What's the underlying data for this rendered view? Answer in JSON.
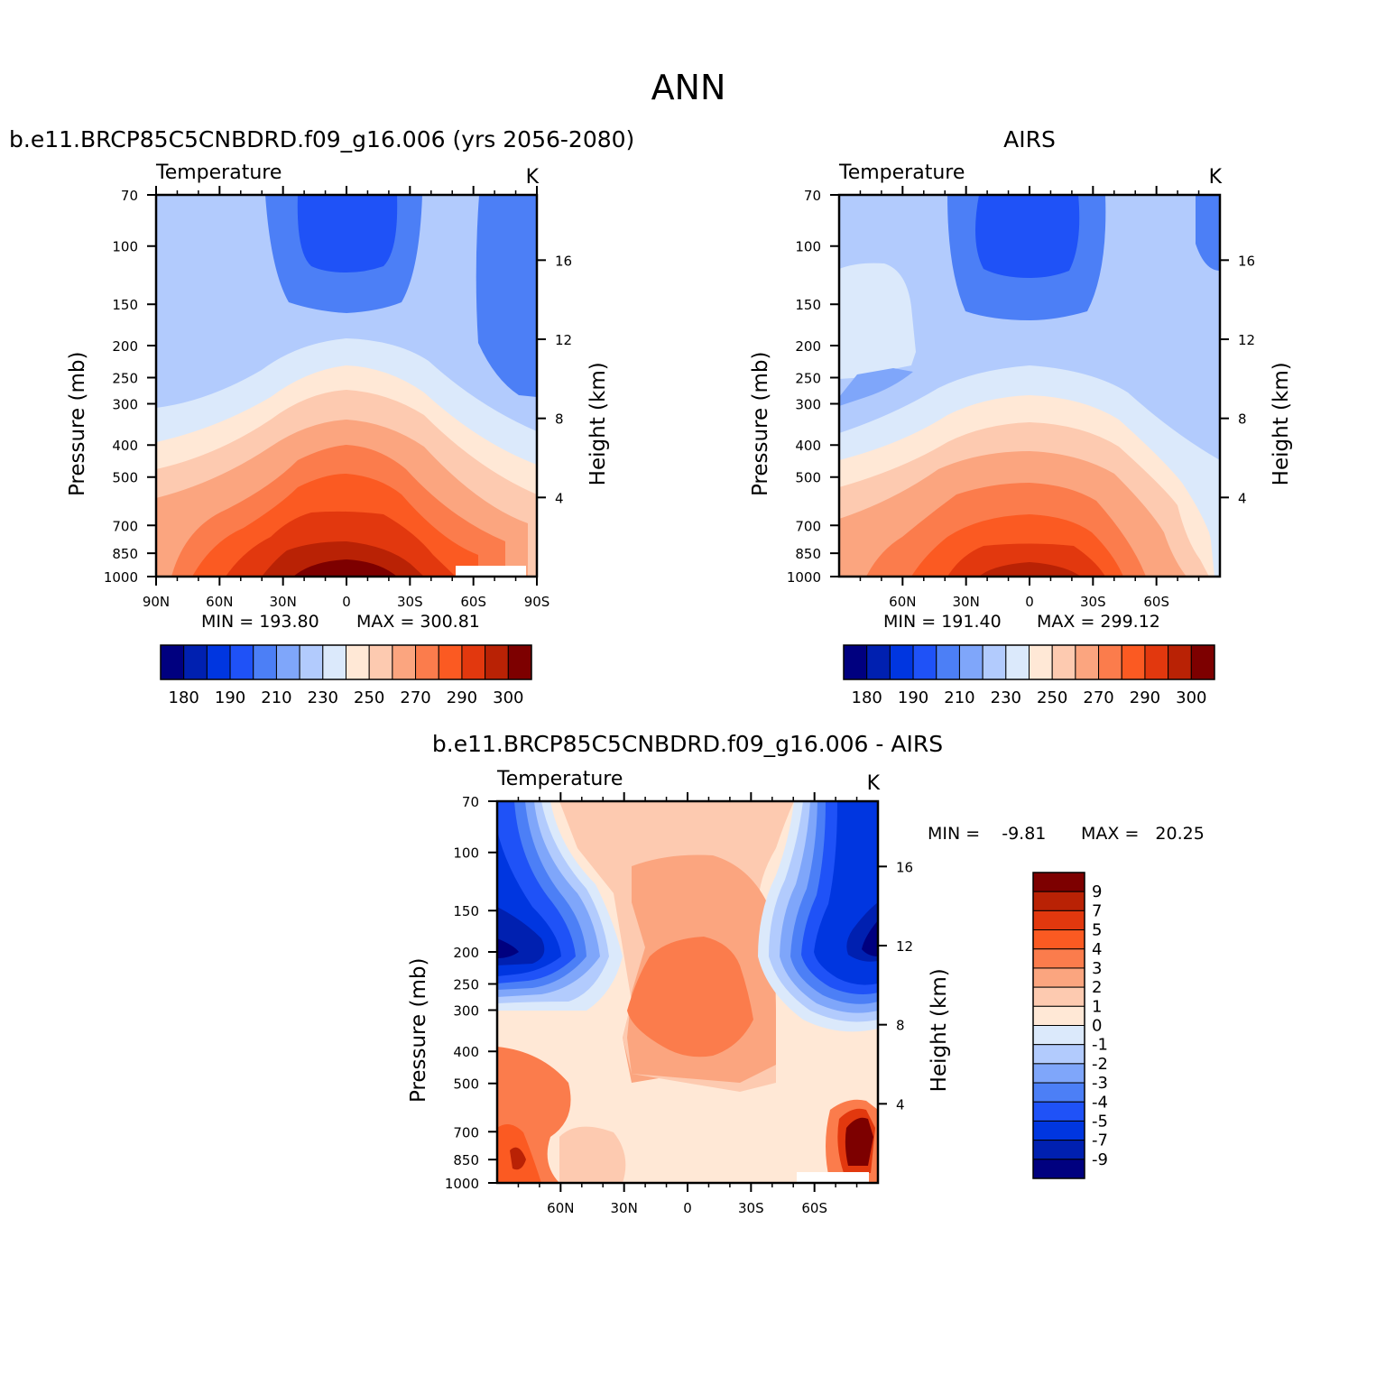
{
  "figure": {
    "title": "ANN",
    "colors": {
      "temperature_levels": [
        "#00007f",
        "#0020b0",
        "#0036e0",
        "#1f52f7",
        "#4c7ff6",
        "#7fa6fa",
        "#b2cbfd",
        "#dbe9fb",
        "#ffe8d6",
        "#fdcab0",
        "#fba57f",
        "#fb7c4c",
        "#fb5a22",
        "#e2380e",
        "#b92205",
        "#7d0000"
      ],
      "difference_levels": [
        "#00007f",
        "#0020b0",
        "#0036e0",
        "#1f52f7",
        "#4c7ff6",
        "#7fa6fa",
        "#b2cbfd",
        "#dbe9fb",
        "#ffe8d6",
        "#fdcab0",
        "#fba57f",
        "#fb7c4c",
        "#fb5a22",
        "#e2380e",
        "#b92205",
        "#7d0000"
      ],
      "missing": "#ffffff"
    }
  },
  "chart_data": [
    {
      "type": "heatmap",
      "id": "model",
      "title": "b.e11.BRCP85C5CNBDRD.f09_g16.006 (yrs 2056-2080)",
      "variable": "Temperature",
      "units": "K",
      "ylabel": "Pressure (mb)",
      "ylabel_right": "Height (km)",
      "x_ticks": [
        {
          "lat": 90,
          "label": "90N"
        },
        {
          "lat": 60,
          "label": "60N"
        },
        {
          "lat": 30,
          "label": "30N"
        },
        {
          "lat": 0,
          "label": "0"
        },
        {
          "lat": -30,
          "label": "30S"
        },
        {
          "lat": -60,
          "label": "60S"
        },
        {
          "lat": -90,
          "label": "90S"
        }
      ],
      "y_ticks": [
        70,
        100,
        150,
        200,
        250,
        300,
        400,
        500,
        700,
        850,
        1000
      ],
      "height_ticks": [
        16,
        12,
        8,
        4
      ],
      "xlim": [
        90,
        -90
      ],
      "ylim": [
        70,
        1000
      ],
      "yscale": "log",
      "min": "193.80",
      "max": "300.81",
      "colorbar": {
        "labels": [
          "180",
          "190",
          "210",
          "230",
          "250",
          "270",
          "290",
          "300"
        ],
        "label_positions": [
          1,
          3,
          5,
          7,
          9,
          11,
          13,
          15
        ],
        "orientation": "horizontal"
      }
    },
    {
      "type": "heatmap",
      "id": "obs",
      "title": "AIRS",
      "variable": "Temperature",
      "units": "K",
      "ylabel": "Pressure (mb)",
      "ylabel_right": "Height (km)",
      "x_ticks": [
        {
          "lat": 60,
          "label": "60N"
        },
        {
          "lat": 30,
          "label": "30N"
        },
        {
          "lat": 0,
          "label": "0"
        },
        {
          "lat": -30,
          "label": "30S"
        },
        {
          "lat": -60,
          "label": "60S"
        }
      ],
      "y_ticks": [
        70,
        100,
        150,
        200,
        250,
        300,
        400,
        500,
        700,
        850,
        1000
      ],
      "height_ticks": [
        16,
        12,
        8,
        4
      ],
      "xlim": [
        90,
        -90
      ],
      "ylim": [
        70,
        1000
      ],
      "yscale": "log",
      "min": "191.40",
      "max": "299.12",
      "colorbar": {
        "labels": [
          "180",
          "190",
          "210",
          "230",
          "250",
          "270",
          "290",
          "300"
        ],
        "label_positions": [
          1,
          3,
          5,
          7,
          9,
          11,
          13,
          15
        ],
        "orientation": "horizontal"
      }
    },
    {
      "type": "heatmap",
      "id": "diff",
      "title": "b.e11.BRCP85C5CNBDRD.f09_g16.006 - AIRS",
      "variable": "Temperature",
      "units": "K",
      "ylabel": "Pressure (mb)",
      "ylabel_right": "Height (km)",
      "x_ticks": [
        {
          "lat": 60,
          "label": "60N"
        },
        {
          "lat": 30,
          "label": "30N"
        },
        {
          "lat": 0,
          "label": "0"
        },
        {
          "lat": -30,
          "label": "30S"
        },
        {
          "lat": -60,
          "label": "60S"
        }
      ],
      "y_ticks": [
        70,
        100,
        150,
        200,
        250,
        300,
        400,
        500,
        700,
        850,
        1000
      ],
      "height_ticks": [
        16,
        12,
        8,
        4
      ],
      "xlim": [
        90,
        -90
      ],
      "ylim": [
        70,
        1000
      ],
      "yscale": "log",
      "min": "-9.81",
      "max": "20.25",
      "colorbar": {
        "labels": [
          "9",
          "7",
          "5",
          "4",
          "3",
          "2",
          "1",
          "0",
          "-1",
          "-2",
          "-3",
          "-4",
          "-5",
          "-7",
          "-9"
        ],
        "orientation": "vertical"
      }
    }
  ]
}
